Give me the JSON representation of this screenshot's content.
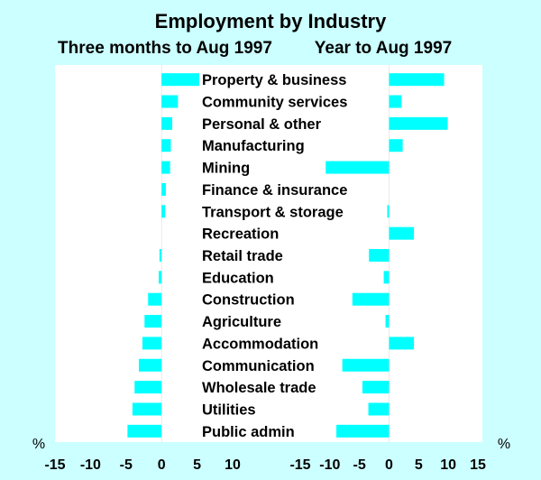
{
  "chart_data": [
    {
      "type": "bar",
      "orientation": "horizontal",
      "title": "Employment by Industry",
      "subtitle": "Three months to Aug 1997",
      "unit": "%",
      "xlim": [
        -15,
        10
      ],
      "xticks": [
        -15,
        -10,
        -5,
        0,
        5,
        10
      ],
      "categories": [
        "Property & business",
        "Community services",
        "Personal & other",
        "Manufacturing",
        "Mining",
        "Finance & insurance",
        "Transport & storage",
        "Recreation",
        "Retail trade",
        "Education",
        "Construction",
        "Agriculture",
        "Accommodation",
        "Communication",
        "Wholesale trade",
        "Utilities",
        "Public admin"
      ],
      "values": [
        5.3,
        2.3,
        1.5,
        1.3,
        1.2,
        0.6,
        0.5,
        0.0,
        -0.3,
        -0.4,
        -1.9,
        -2.4,
        -2.7,
        -3.2,
        -3.8,
        -4.1,
        -4.8
      ],
      "color": "#00ffff",
      "grid": false
    },
    {
      "type": "bar",
      "orientation": "horizontal",
      "subtitle": "Year to Aug 1997",
      "unit": "%",
      "xlim": [
        -15,
        15
      ],
      "xticks": [
        -15,
        -10,
        -5,
        0,
        5,
        10,
        15
      ],
      "categories": [
        "Property & business",
        "Community services",
        "Personal & other",
        "Manufacturing",
        "Mining",
        "Finance & insurance",
        "Transport & storage",
        "Recreation",
        "Retail trade",
        "Education",
        "Construction",
        "Agriculture",
        "Accommodation",
        "Communication",
        "Wholesale trade",
        "Utilities",
        "Public admin"
      ],
      "values": [
        9.3,
        2.1,
        9.9,
        2.3,
        -10.7,
        0.0,
        -0.3,
        4.2,
        -3.4,
        -0.9,
        -6.2,
        -0.6,
        4.2,
        -7.9,
        -4.5,
        -3.5,
        -8.9
      ],
      "color": "#00ffff",
      "grid": false
    }
  ]
}
